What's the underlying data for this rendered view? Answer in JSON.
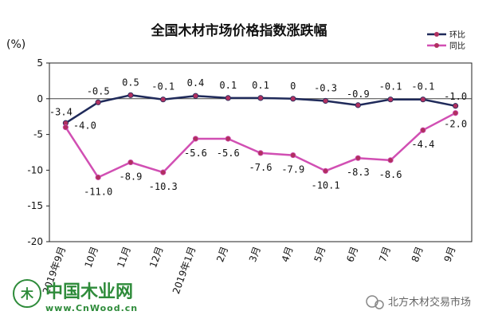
{
  "chart_data": {
    "type": "line",
    "title": "全国木材市场价格指数涨跌幅",
    "unit_label": "(%)",
    "categories": [
      "2019年9月",
      "10月",
      "11月",
      "12月",
      "2019年1月",
      "2月",
      "3月",
      "4月",
      "5月",
      "6月",
      "7月",
      "8月",
      "9月"
    ],
    "ylim": [
      -20,
      5
    ],
    "yticks": [
      5,
      0,
      -5,
      -10,
      -15,
      -20
    ],
    "grid": false,
    "legend_position": "top-right",
    "series": [
      {
        "name": "环比",
        "color": "#1f2a5a",
        "marker_color": "#b03060",
        "values": [
          -3.4,
          -0.5,
          0.5,
          -0.1,
          0.4,
          0.1,
          0.1,
          0,
          -0.3,
          -0.9,
          -0.1,
          -0.1,
          -1.0
        ],
        "labels": [
          "-3.4",
          "-0.5",
          "0.5",
          "-0.1",
          "0.4",
          "0.1",
          "0.1",
          "0",
          "-0.3",
          "-0.9",
          "-0.1",
          "-0.1",
          "-1.0"
        ]
      },
      {
        "name": "同比",
        "color": "#d14fb3",
        "marker_color": "#b03060",
        "values": [
          -4.0,
          -11.0,
          -8.9,
          -10.3,
          -5.6,
          -5.6,
          -7.6,
          -7.9,
          -10.1,
          -8.3,
          -8.6,
          -4.4,
          -2.0
        ],
        "labels": [
          "-4.0",
          "-11.0",
          "-8.9",
          "-10.3",
          "-5.6",
          "-5.6",
          "-7.6",
          "-7.9",
          "-10.1",
          "-8.3",
          "-8.6",
          "-4.4",
          "-2.0"
        ]
      }
    ]
  },
  "watermark": {
    "logo_text": "中国木业网",
    "url": "www.CnWood.cn",
    "source": "北方木材交易市场"
  }
}
